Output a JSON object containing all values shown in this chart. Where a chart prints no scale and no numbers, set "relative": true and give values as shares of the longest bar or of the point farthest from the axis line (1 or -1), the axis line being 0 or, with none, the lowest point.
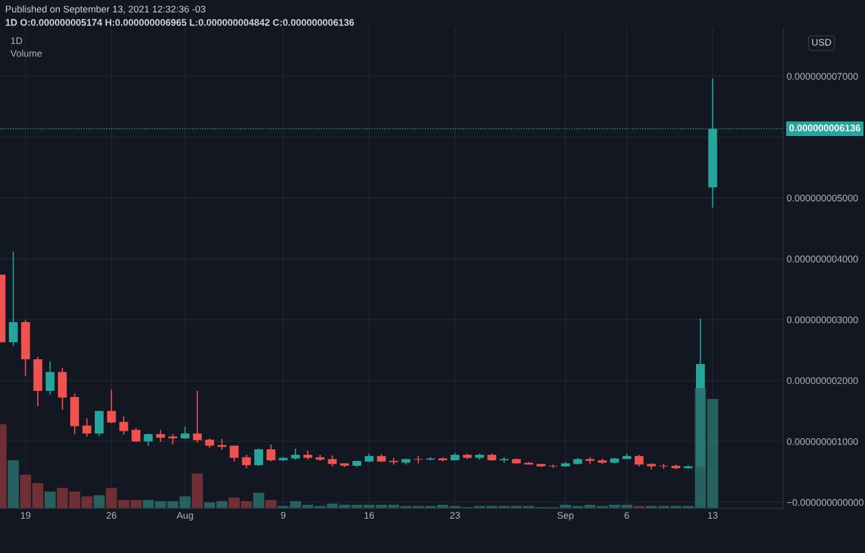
{
  "chart_data": [
    {
      "type": "candlestick",
      "title": "1D",
      "annotations": [
        "Published on September 13, 2021 12:32:36 -03",
        "1D O:0.000000005174 H:0.000000006965 L:0.000000004842 C:0.000000006136",
        "USD"
      ],
      "x": [
        "2021-07-17",
        "2021-07-18",
        "2021-07-19",
        "2021-07-20",
        "2021-07-21",
        "2021-07-22",
        "2021-07-23",
        "2021-07-24",
        "2021-07-25",
        "2021-07-26",
        "2021-07-27",
        "2021-07-28",
        "2021-07-29",
        "2021-07-30",
        "2021-07-31",
        "2021-08-01",
        "2021-08-02",
        "2021-08-03",
        "2021-08-04",
        "2021-08-05",
        "2021-08-06",
        "2021-08-07",
        "2021-08-08",
        "2021-08-09",
        "2021-08-10",
        "2021-08-11",
        "2021-08-12",
        "2021-08-13",
        "2021-08-14",
        "2021-08-15",
        "2021-08-16",
        "2021-08-17",
        "2021-08-18",
        "2021-08-19",
        "2021-08-20",
        "2021-08-21",
        "2021-08-22",
        "2021-08-23",
        "2021-08-24",
        "2021-08-25",
        "2021-08-26",
        "2021-08-27",
        "2021-08-28",
        "2021-08-29",
        "2021-08-30",
        "2021-08-31",
        "2021-09-01",
        "2021-09-02",
        "2021-09-03",
        "2021-09-04",
        "2021-09-05",
        "2021-09-06",
        "2021-09-07",
        "2021-09-08",
        "2021-09-09",
        "2021-09-10",
        "2021-09-11",
        "2021-09-12",
        "2021-09-13"
      ],
      "ohlc": [
        [
          3.74e-09,
          3.74e-09,
          2.63e-09,
          2.63e-09
        ],
        [
          2.63e-09,
          4.12e-09,
          2.57e-09,
          2.96e-09
        ],
        [
          2.96e-09,
          2.99e-09,
          2.08e-09,
          2.35e-09
        ],
        [
          2.35e-09,
          2.39e-09,
          1.58e-09,
          1.83e-09
        ],
        [
          1.83e-09,
          2.31e-09,
          1.77e-09,
          2.14e-09
        ],
        [
          2.14e-09,
          2.21e-09,
          1.52e-09,
          1.72e-09
        ],
        [
          1.73e-09,
          1.79e-09,
          1.12e-09,
          1.25e-09
        ],
        [
          1.26e-09,
          1.38e-09,
          1.08e-09,
          1.13e-09
        ],
        [
          1.13e-09,
          1.5e-09,
          1.09e-09,
          1.5e-09
        ],
        [
          1.5e-09,
          1.85e-09,
          1.3e-09,
          1.31e-09
        ],
        [
          1.32e-09,
          1.41e-09,
          1.11e-09,
          1.17e-09
        ],
        [
          1.19e-09,
          1.22e-09,
          9.9e-10,
          1e-09
        ],
        [
          1e-09,
          1.13e-09,
          9.3e-10,
          1.12e-09
        ],
        [
          1.12e-09,
          1.19e-09,
          9.9e-10,
          1.06e-09
        ],
        [
          1.08e-09,
          1.12e-09,
          9.5e-10,
          1.05e-09
        ],
        [
          1.05e-09,
          1.24e-09,
          1.04e-09,
          1.13e-09
        ],
        [
          1.13e-09,
          1.83e-09,
          9.8e-10,
          1.02e-09
        ],
        [
          1.03e-09,
          1.05e-09,
          8.9e-10,
          9.3e-10
        ],
        [
          9.4e-10,
          1.04e-09,
          8.6e-10,
          9.1e-10
        ],
        [
          9.3e-10,
          9.3e-10,
          6.7e-10,
          7.3e-10
        ],
        [
          7.4e-10,
          7.8e-10,
          5.6e-10,
          6.1e-10
        ],
        [
          6.1e-10,
          8.8e-10,
          6e-10,
          8.7e-10
        ],
        [
          8.7e-10,
          9.5e-10,
          6.7e-10,
          6.9e-10
        ],
        [
          6.9e-10,
          7.4e-10,
          6.8e-10,
          7.3e-10
        ],
        [
          7.2e-10,
          8.8e-10,
          7e-10,
          7.8e-10
        ],
        [
          7.8e-10,
          8.5e-10,
          7e-10,
          7.3e-10
        ],
        [
          7.4e-10,
          7.8e-10,
          6.8e-10,
          7e-10
        ],
        [
          7.1e-10,
          7.7e-10,
          5.9e-10,
          6.3e-10
        ],
        [
          6.4e-10,
          6.4e-10,
          5.8e-10,
          6e-10
        ],
        [
          6e-10,
          6.8e-10,
          5.8e-10,
          6.8e-10
        ],
        [
          6.7e-10,
          8e-10,
          6.6e-10,
          7.6e-10
        ],
        [
          7.6e-10,
          7.9e-10,
          6.6e-10,
          6.7e-10
        ],
        [
          6.8e-10,
          7.3e-10,
          6.2e-10,
          6.6e-10
        ],
        [
          6.5e-10,
          7.2e-10,
          6.2e-10,
          7.1e-10
        ],
        [
          7.1e-10,
          7.6e-10,
          6.4e-10,
          7e-10
        ],
        [
          7e-10,
          7.4e-10,
          6.9e-10,
          7.2e-10
        ],
        [
          7.2e-10,
          7.4e-10,
          6.7e-10,
          6.9e-10
        ],
        [
          6.9e-10,
          8.1e-10,
          6.9e-10,
          7.8e-10
        ],
        [
          7.8e-10,
          8e-10,
          7.1e-10,
          7.3e-10
        ],
        [
          7.3e-10,
          8e-10,
          7e-10,
          7.8e-10
        ],
        [
          7.8e-10,
          8e-10,
          6.8e-10,
          6.9e-10
        ],
        [
          6.9e-10,
          7.4e-10,
          6.5e-10,
          7.1e-10
        ],
        [
          7.1e-10,
          7.2e-10,
          6.3e-10,
          6.4e-10
        ],
        [
          6.5e-10,
          6.6e-10,
          6.2e-10,
          6.2e-10
        ],
        [
          6.3e-10,
          6.3e-10,
          5.8e-10,
          5.9e-10
        ],
        [
          6e-10,
          6.2e-10,
          5.6e-10,
          5.9e-10
        ],
        [
          5.9e-10,
          6.6e-10,
          5.8e-10,
          6.4e-10
        ],
        [
          6.3e-10,
          7.3e-10,
          6.2e-10,
          7.1e-10
        ],
        [
          7.1e-10,
          7.4e-10,
          6.3e-10,
          6.8e-10
        ],
        [
          6.9e-10,
          7.2e-10,
          6.3e-10,
          6.5e-10
        ],
        [
          6.5e-10,
          7.3e-10,
          6.4e-10,
          7.2e-10
        ],
        [
          7.1e-10,
          8e-10,
          7.1e-10,
          7.6e-10
        ],
        [
          7.6e-10,
          7.8e-10,
          5.9e-10,
          6.2e-10
        ],
        [
          6.3e-10,
          6.4e-10,
          5.4e-10,
          5.9e-10
        ],
        [
          6e-10,
          6.3e-10,
          5.5e-10,
          5.9e-10
        ],
        [
          6e-10,
          6.2e-10,
          5.4e-10,
          5.6e-10
        ],
        [
          5.6e-10,
          6.1e-10,
          5.5e-10,
          5.9e-10
        ],
        [
          5.8e-10,
          3.02e-09,
          5.5e-10,
          2.27e-09
        ],
        [
          5.174e-09,
          6.965e-09,
          4.842e-09,
          6.136e-09
        ]
      ],
      "colors": [
        "#ef5350",
        "#26a69a",
        "#ef5350",
        "#ef5350",
        "#26a69a",
        "#ef5350",
        "#ef5350",
        "#ef5350",
        "#26a69a",
        "#ef5350",
        "#ef5350",
        "#ef5350",
        "#26a69a",
        "#ef5350",
        "#ef5350",
        "#26a69a",
        "#ef5350",
        "#ef5350",
        "#ef5350",
        "#ef5350",
        "#ef5350",
        "#26a69a",
        "#ef5350",
        "#26a69a",
        "#26a69a",
        "#ef5350",
        "#ef5350",
        "#ef5350",
        "#ef5350",
        "#26a69a",
        "#26a69a",
        "#ef5350",
        "#ef5350",
        "#26a69a",
        "#ef5350",
        "#26a69a",
        "#ef5350",
        "#26a69a",
        "#ef5350",
        "#26a69a",
        "#ef5350",
        "#26a69a",
        "#ef5350",
        "#ef5350",
        "#ef5350",
        "#ef5350",
        "#26a69a",
        "#26a69a",
        "#ef5350",
        "#ef5350",
        "#26a69a",
        "#26a69a",
        "#ef5350",
        "#ef5350",
        "#ef5350",
        "#ef5350",
        "#26a69a",
        "#26a69a",
        "#26a69a"
      ],
      "xlim": [
        "2021-07-16T22:00",
        "2021-09-18T18:00"
      ],
      "xticks": [
        {
          "value": "2021-07-19",
          "label": "19"
        },
        {
          "value": "2021-07-26",
          "label": "26"
        },
        {
          "value": "2021-08-01",
          "label": "Aug"
        },
        {
          "value": "2021-08-09",
          "label": "9"
        },
        {
          "value": "2021-08-16",
          "label": "16"
        },
        {
          "value": "2021-08-23",
          "label": "23"
        },
        {
          "value": "2021-09-01",
          "label": "Sep"
        },
        {
          "value": "2021-09-06",
          "label": "6"
        },
        {
          "value": "2021-09-13",
          "label": "13"
        }
      ],
      "ylim": [
        -1e-10,
        7.8e-09
      ],
      "yticks": [
        {
          "value": 0,
          "label": "−0.000000000000"
        },
        {
          "value": 1e-09,
          "label": "0.000000001000"
        },
        {
          "value": 2e-09,
          "label": "0.000000002000"
        },
        {
          "value": 3e-09,
          "label": "0.000000003000"
        },
        {
          "value": 4e-09,
          "label": "0.000000004000"
        },
        {
          "value": 5e-09,
          "label": "0.000000005000"
        },
        {
          "value": 6e-09,
          "label": null
        },
        {
          "value": 7e-09,
          "label": "0.000000007000"
        }
      ],
      "ref_lines": [
        {
          "axis": "y",
          "value": 6.136e-09,
          "label": "0.000000006136",
          "color": "#26a69a",
          "line_style": "dotted"
        }
      ],
      "grid": true
    },
    {
      "type": "bar",
      "title": "Volume",
      "relative": true,
      "x": [
        "2021-07-17",
        "2021-07-18",
        "2021-07-19",
        "2021-07-20",
        "2021-07-21",
        "2021-07-22",
        "2021-07-23",
        "2021-07-24",
        "2021-07-25",
        "2021-07-26",
        "2021-07-27",
        "2021-07-28",
        "2021-07-29",
        "2021-07-30",
        "2021-07-31",
        "2021-08-01",
        "2021-08-02",
        "2021-08-03",
        "2021-08-04",
        "2021-08-05",
        "2021-08-06",
        "2021-08-07",
        "2021-08-08",
        "2021-08-09",
        "2021-08-10",
        "2021-08-11",
        "2021-08-12",
        "2021-08-13",
        "2021-08-14",
        "2021-08-15",
        "2021-08-16",
        "2021-08-17",
        "2021-08-18",
        "2021-08-19",
        "2021-08-20",
        "2021-08-21",
        "2021-08-22",
        "2021-08-23",
        "2021-08-24",
        "2021-08-25",
        "2021-08-26",
        "2021-08-27",
        "2021-08-28",
        "2021-08-29",
        "2021-08-30",
        "2021-08-31",
        "2021-09-01",
        "2021-09-02",
        "2021-09-03",
        "2021-09-04",
        "2021-09-05",
        "2021-09-06",
        "2021-09-07",
        "2021-09-08",
        "2021-09-09",
        "2021-09-10",
        "2021-09-11",
        "2021-09-12",
        "2021-09-13"
      ],
      "values": [
        0.7,
        0.4,
        0.28,
        0.21,
        0.14,
        0.17,
        0.14,
        0.1,
        0.11,
        0.17,
        0.07,
        0.07,
        0.07,
        0.06,
        0.06,
        0.1,
        0.29,
        0.05,
        0.06,
        0.09,
        0.06,
        0.13,
        0.07,
        0.02,
        0.06,
        0.03,
        0.02,
        0.04,
        0.03,
        0.03,
        0.03,
        0.03,
        0.03,
        0.02,
        0.02,
        0.02,
        0.03,
        0.02,
        0.01,
        0.02,
        0.02,
        0.02,
        0.02,
        0.02,
        0.01,
        0.01,
        0.03,
        0.02,
        0.03,
        0.02,
        0.03,
        0.03,
        0.02,
        0.02,
        0.02,
        0.02,
        0.02,
        1,
        0.91
      ],
      "colors": [
        "#7f3538",
        "#2a6f6b",
        "#7f3538",
        "#7f3538",
        "#2a6f6b",
        "#7f3538",
        "#7f3538",
        "#7f3538",
        "#2a6f6b",
        "#7f3538",
        "#7f3538",
        "#7f3538",
        "#2a6f6b",
        "#2a6f6b",
        "#2a6f6b",
        "#2a6f6b",
        "#7f3538",
        "#2a6f6b",
        "#2a6f6b",
        "#7f3538",
        "#7f3538",
        "#2a6f6b",
        "#7f3538",
        "#2a6f6b",
        "#2a6f6b",
        "#2a6f6b",
        "#2a6f6b",
        "#2a6f6b",
        "#2a6f6b",
        "#2a6f6b",
        "#2a6f6b",
        "#2a6f6b",
        "#2a6f6b",
        "#2a6f6b",
        "#2a6f6b",
        "#2a6f6b",
        "#2a6f6b",
        "#2a6f6b",
        "#2a6f6b",
        "#2a6f6b",
        "#2a6f6b",
        "#2a6f6b",
        "#2a6f6b",
        "#2a6f6b",
        "#2a6f6b",
        "#2a6f6b",
        "#2a6f6b",
        "#2a6f6b",
        "#2a6f6b",
        "#2a6f6b",
        "#2a6f6b",
        "#2a6f6b",
        "#7f3538",
        "#2a6f6b",
        "#2a6f6b",
        "#2a6f6b",
        "#2a6f6b",
        "#2a6f6b",
        "#2a6f6b"
      ],
      "xlim": [
        "2021-07-16T22:00",
        "2021-09-18T18:00"
      ],
      "tick_labels": false
    }
  ]
}
